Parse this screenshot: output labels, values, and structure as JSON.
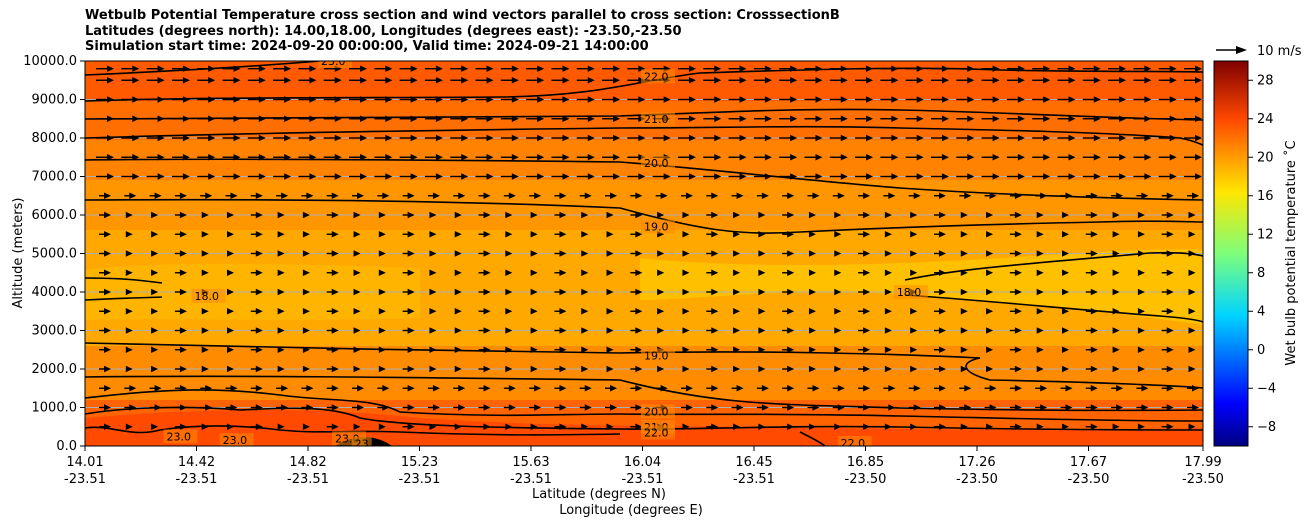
{
  "chart_data": {
    "type": "heatmap",
    "title_lines": [
      "Wetbulb Potential Temperature cross section and wind vectors parallel to cross section: CrosssectionB",
      "Latitudes (degrees north): 14.00,18.00, Longitudes (degrees east): -23.50,-23.50",
      "Simulation start time: 2024-09-20 00:00:00, Valid time: 2024-09-21 14:00:00"
    ],
    "ylabel": "Altitude (meters)",
    "xlabel_lat": "Latitude (degrees N)",
    "xlabel_lon": "Longitude (degrees E)",
    "ylim": [
      0,
      10000
    ],
    "y_ticks": [
      "0.0",
      "1000.0",
      "2000.0",
      "3000.0",
      "4000.0",
      "5000.0",
      "6000.0",
      "7000.0",
      "8000.0",
      "9000.0",
      "10000.0"
    ],
    "x_ticks_lat": [
      "14.01",
      "14.42",
      "14.82",
      "15.23",
      "15.63",
      "16.04",
      "16.45",
      "16.85",
      "17.26",
      "17.67",
      "17.99"
    ],
    "x_ticks_lon": [
      "-23.51",
      "-23.51",
      "-23.51",
      "-23.51",
      "-23.51",
      "-23.51",
      "-23.51",
      "-23.50",
      "-23.50",
      "-23.50",
      "-23.50"
    ],
    "colorbar": {
      "label": "Wet bulb potential temperature $^\\circ$C",
      "label_text": "Wet bulb potential temperature ˚C",
      "range": [
        -10,
        30
      ],
      "ticks": [
        "−8",
        "−4",
        "0",
        "4",
        "8",
        "12",
        "16",
        "20",
        "24",
        "28"
      ],
      "tick_values": [
        -8,
        -4,
        0,
        4,
        8,
        12,
        16,
        20,
        24,
        28
      ]
    },
    "quiver_key": "10 m/s",
    "contour_labels": [
      {
        "text": "23.0",
        "lat": 14.85,
        "alt": 10000
      },
      {
        "text": "22.0",
        "lat": 16.0,
        "alt": 9600
      },
      {
        "text": "21.0",
        "lat": 16.0,
        "alt": 8500
      },
      {
        "text": "20.0",
        "lat": 16.0,
        "alt": 7350
      },
      {
        "text": "19.0",
        "lat": 16.0,
        "alt": 5700
      },
      {
        "text": "18.0",
        "lat": 14.4,
        "alt": 3900
      },
      {
        "text": "18.0",
        "lat": 16.9,
        "alt": 4000
      },
      {
        "text": "19.0",
        "lat": 16.0,
        "alt": 2350
      },
      {
        "text": "20.0",
        "lat": 16.0,
        "alt": 900
      },
      {
        "text": "21.0",
        "lat": 16.0,
        "alt": 500
      },
      {
        "text": "22.0",
        "lat": 16.0,
        "alt": 350
      },
      {
        "text": "22.0",
        "lat": 16.7,
        "alt": 80
      },
      {
        "text": "23.0",
        "lat": 14.3,
        "alt": 250
      },
      {
        "text": "23.0",
        "lat": 14.5,
        "alt": 150
      },
      {
        "text": "23.0",
        "lat": 14.9,
        "alt": 200
      },
      {
        "text": "23",
        "lat": 14.97,
        "alt": 60
      }
    ],
    "colors": {
      "band_top": "#ff5a00",
      "band_upper": "#ff7800",
      "band_mid": "#ff9400",
      "band_core": "#ffb400",
      "band_core_light": "#ffc400",
      "band_low": "#ff8c00",
      "band_surface": "#ff5000",
      "terrain": "#000000",
      "contour": "#000000",
      "gridline": "#b0b0b0"
    }
  }
}
